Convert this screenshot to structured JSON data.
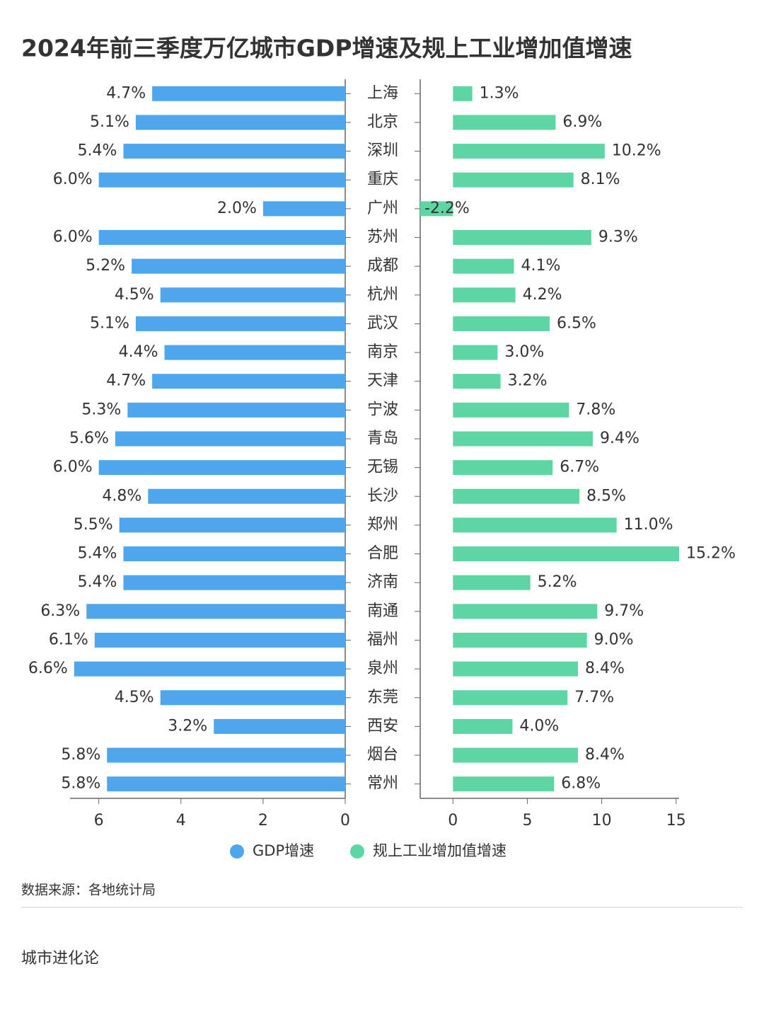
{
  "chart_data": {
    "type": "bar",
    "orientation": "horizontal",
    "title": "2024年前三季度万亿城市GDP增速及规上工业增加值增速",
    "categories": [
      "上海",
      "北京",
      "深圳",
      "重庆",
      "广州",
      "苏州",
      "成都",
      "杭州",
      "武汉",
      "南京",
      "天津",
      "宁波",
      "青岛",
      "无锡",
      "长沙",
      "郑州",
      "合肥",
      "济南",
      "南通",
      "福州",
      "泉州",
      "东莞",
      "西安",
      "烟台",
      "常州"
    ],
    "series": [
      {
        "name": "GDP增速",
        "color": "#4ea6ec",
        "values": [
          4.7,
          5.1,
          5.4,
          6.0,
          2.0,
          6.0,
          5.2,
          4.5,
          5.1,
          4.4,
          4.7,
          5.3,
          5.6,
          6.0,
          4.8,
          5.5,
          5.4,
          5.4,
          6.3,
          6.1,
          6.6,
          4.5,
          3.2,
          5.8,
          5.8
        ],
        "value_labels": [
          "4.7%",
          "5.1%",
          "5.4%",
          "6.0%",
          "2.0%",
          "6.0%",
          "5.2%",
          "4.5%",
          "5.1%",
          "4.4%",
          "4.7%",
          "5.3%",
          "5.6%",
          "6.0%",
          "4.8%",
          "5.5%",
          "5.4%",
          "5.4%",
          "6.3%",
          "6.1%",
          "6.6%",
          "4.5%",
          "3.2%",
          "5.8%",
          "5.8%"
        ],
        "xlim": [
          0,
          6.7
        ],
        "xticks": [
          6,
          4,
          2,
          0
        ]
      },
      {
        "name": "规上工业增加值增速",
        "color": "#5dd6a4",
        "values": [
          1.3,
          6.9,
          10.2,
          8.1,
          -2.2,
          9.3,
          4.1,
          4.2,
          6.5,
          3.0,
          3.2,
          7.8,
          9.4,
          6.7,
          8.5,
          11.0,
          15.2,
          5.2,
          9.7,
          9.0,
          8.4,
          7.7,
          4.0,
          8.4,
          6.8
        ],
        "value_labels": [
          "1.3%",
          "6.9%",
          "10.2%",
          "8.1%",
          "-2.2%",
          "9.3%",
          "4.1%",
          "4.2%",
          "6.5%",
          "3.0%",
          "3.2%",
          "7.8%",
          "9.4%",
          "6.7%",
          "8.5%",
          "11.0%",
          "15.2%",
          "5.2%",
          "9.7%",
          "9.0%",
          "8.4%",
          "7.7%",
          "4.0%",
          "8.4%",
          "6.8%"
        ],
        "xlim": [
          -2.2,
          15.2
        ],
        "xticks": [
          0,
          5,
          10,
          15
        ]
      }
    ]
  },
  "footer": {
    "source": "数据来源：各地统计局",
    "brand": "城市进化论"
  }
}
